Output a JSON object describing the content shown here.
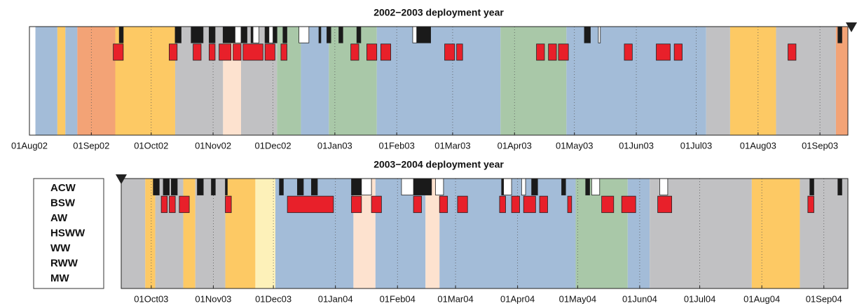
{
  "legend": [
    {
      "label": "ACW",
      "color": "#f3a376"
    },
    {
      "label": "BSW",
      "color": "#fdc964"
    },
    {
      "label": "AW",
      "color": "#fde2cf"
    },
    {
      "label": "HSWW",
      "color": "#a9c8a8"
    },
    {
      "label": "WW",
      "color": "#a3bcd8"
    },
    {
      "label": "RWW",
      "color": "#c1c1c3"
    },
    {
      "label": "MW",
      "color": "#fdf1b9"
    }
  ],
  "chart_data": [
    {
      "type": "timeline",
      "title": "2002−2003 deployment year",
      "xlim": [
        0,
        410
      ],
      "xticks": [
        {
          "value": 0,
          "label": "01Aug02"
        },
        {
          "value": 31,
          "label": "01Sep02"
        },
        {
          "value": 61,
          "label": "01Oct02"
        },
        {
          "value": 92,
          "label": "01Nov02"
        },
        {
          "value": 122,
          "label": "01Dec02"
        },
        {
          "value": 153,
          "label": "01Jan03"
        },
        {
          "value": 184,
          "label": "01Feb03"
        },
        {
          "value": 212,
          "label": "01Mar03"
        },
        {
          "value": 243,
          "label": "01Apr03"
        },
        {
          "value": 273,
          "label": "01May03"
        },
        {
          "value": 304,
          "label": "01Jun03"
        },
        {
          "value": 334,
          "label": "01Jul03"
        },
        {
          "value": 365,
          "label": "01Aug03"
        },
        {
          "value": 396,
          "label": "01Sep03"
        }
      ],
      "grid": true,
      "bands": [
        {
          "type": "WW",
          "start": 3,
          "end": 14
        },
        {
          "type": "BSW",
          "start": 14,
          "end": 18
        },
        {
          "type": "WW",
          "start": 18,
          "end": 24
        },
        {
          "type": "ACW",
          "start": 24,
          "end": 43
        },
        {
          "type": "BSW",
          "start": 43,
          "end": 73
        },
        {
          "type": "RWW",
          "start": 73,
          "end": 97
        },
        {
          "type": "AW",
          "start": 97,
          "end": 106
        },
        {
          "type": "RWW",
          "start": 106,
          "end": 124
        },
        {
          "type": "HSWW",
          "start": 124,
          "end": 136
        },
        {
          "type": "WW",
          "start": 136,
          "end": 150
        },
        {
          "type": "HSWW",
          "start": 150,
          "end": 174
        },
        {
          "type": "WW",
          "start": 174,
          "end": 236
        },
        {
          "type": "HSWW",
          "start": 236,
          "end": 269
        },
        {
          "type": "WW",
          "start": 269,
          "end": 339
        },
        {
          "type": "RWW",
          "start": 339,
          "end": 351
        },
        {
          "type": "BSW",
          "start": 351,
          "end": 374
        },
        {
          "type": "RWW",
          "start": 374,
          "end": 404
        },
        {
          "type": "ACW",
          "start": 404,
          "end": 410
        }
      ],
      "black_blocks": [
        [
          45,
          47
        ],
        [
          73,
          76
        ],
        [
          81,
          87
        ],
        [
          90,
          93
        ],
        [
          97,
          103
        ],
        [
          106,
          109
        ],
        [
          111,
          112
        ],
        [
          118,
          120
        ],
        [
          122,
          124
        ],
        [
          127,
          129
        ],
        [
          145,
          146
        ],
        [
          149,
          151
        ],
        [
          155,
          157
        ],
        [
          164,
          166
        ],
        [
          194,
          201
        ],
        [
          278,
          281
        ],
        [
          405,
          407
        ]
      ],
      "white_blocks": [
        [
          103,
          106
        ],
        [
          112,
          115
        ],
        [
          120,
          122
        ],
        [
          135,
          140
        ],
        [
          192,
          194
        ],
        [
          285,
          286
        ]
      ],
      "red_blocks": [
        [
          42,
          47
        ],
        [
          70,
          74
        ],
        [
          82,
          86
        ],
        [
          90,
          93
        ],
        [
          95,
          101
        ],
        [
          102,
          106
        ],
        [
          107,
          117
        ],
        [
          118,
          123
        ],
        [
          126,
          129
        ],
        [
          161,
          165
        ],
        [
          169,
          174
        ],
        [
          176,
          181
        ],
        [
          208,
          213
        ],
        [
          214,
          217
        ],
        [
          254,
          258
        ],
        [
          260,
          264
        ],
        [
          265,
          270
        ],
        [
          298,
          302
        ],
        [
          314,
          321
        ],
        [
          323,
          327
        ],
        [
          380,
          384
        ]
      ]
    },
    {
      "type": "timeline",
      "title": "2003−2004 deployment year",
      "xlim": [
        15,
        378
      ],
      "xticks": [
        {
          "value": 30,
          "label": "01Oct03"
        },
        {
          "value": 61,
          "label": "01Nov03"
        },
        {
          "value": 91,
          "label": "01Dec03"
        },
        {
          "value": 122,
          "label": "01Jan04"
        },
        {
          "value": 153,
          "label": "01Feb04"
        },
        {
          "value": 182,
          "label": "01Mar04"
        },
        {
          "value": 213,
          "label": "01Apr04"
        },
        {
          "value": 243,
          "label": "01May04"
        },
        {
          "value": 274,
          "label": "01Jun04"
        },
        {
          "value": 304,
          "label": "01Jul04"
        },
        {
          "value": 335,
          "label": "01Aug04"
        },
        {
          "value": 366,
          "label": "01Sep04"
        }
      ],
      "grid": true,
      "bands": [
        {
          "type": "RWW",
          "start": 15,
          "end": 27
        },
        {
          "type": "BSW",
          "start": 27,
          "end": 32
        },
        {
          "type": "RWW",
          "start": 32,
          "end": 46
        },
        {
          "type": "BSW",
          "start": 46,
          "end": 52
        },
        {
          "type": "RWW",
          "start": 52,
          "end": 67
        },
        {
          "type": "BSW",
          "start": 67,
          "end": 82
        },
        {
          "type": "MW",
          "start": 82,
          "end": 92
        },
        {
          "type": "WW",
          "start": 92,
          "end": 131
        },
        {
          "type": "AW",
          "start": 131,
          "end": 142
        },
        {
          "type": "WW",
          "start": 142,
          "end": 167
        },
        {
          "type": "AW",
          "start": 167,
          "end": 174
        },
        {
          "type": "WW",
          "start": 174,
          "end": 242
        },
        {
          "type": "HSWW",
          "start": 242,
          "end": 268
        },
        {
          "type": "WW",
          "start": 268,
          "end": 279
        },
        {
          "type": "RWW",
          "start": 279,
          "end": 330
        },
        {
          "type": "BSW",
          "start": 330,
          "end": 354
        },
        {
          "type": "RWW",
          "start": 354,
          "end": 378
        }
      ],
      "black_blocks": [
        [
          31,
          34
        ],
        [
          36,
          39
        ],
        [
          40,
          43
        ],
        [
          53,
          56
        ],
        [
          60,
          62
        ],
        [
          67,
          68
        ],
        [
          94,
          96
        ],
        [
          103,
          106
        ],
        [
          110,
          113
        ],
        [
          130,
          135
        ],
        [
          161,
          170
        ],
        [
          205,
          208
        ],
        [
          220,
          223
        ],
        [
          235,
          237
        ],
        [
          247,
          249
        ],
        [
          359,
          361
        ],
        [
          373,
          375
        ]
      ],
      "white_blocks": [
        [
          135,
          140
        ],
        [
          155,
          161
        ],
        [
          172,
          176
        ],
        [
          206,
          210
        ],
        [
          215,
          217
        ],
        [
          250,
          254
        ],
        [
          284,
          288
        ]
      ],
      "red_blocks": [
        [
          35,
          38
        ],
        [
          39,
          42
        ],
        [
          44,
          49
        ],
        [
          67,
          70
        ],
        [
          98,
          121
        ],
        [
          130,
          135
        ],
        [
          140,
          145
        ],
        [
          161,
          165
        ],
        [
          174,
          178
        ],
        [
          183,
          188
        ],
        [
          204,
          207
        ],
        [
          210,
          214
        ],
        [
          216,
          222
        ],
        [
          224,
          228
        ],
        [
          238,
          240
        ],
        [
          255,
          261
        ],
        [
          265,
          272
        ],
        [
          283,
          290
        ],
        [
          358,
          361
        ]
      ]
    }
  ]
}
